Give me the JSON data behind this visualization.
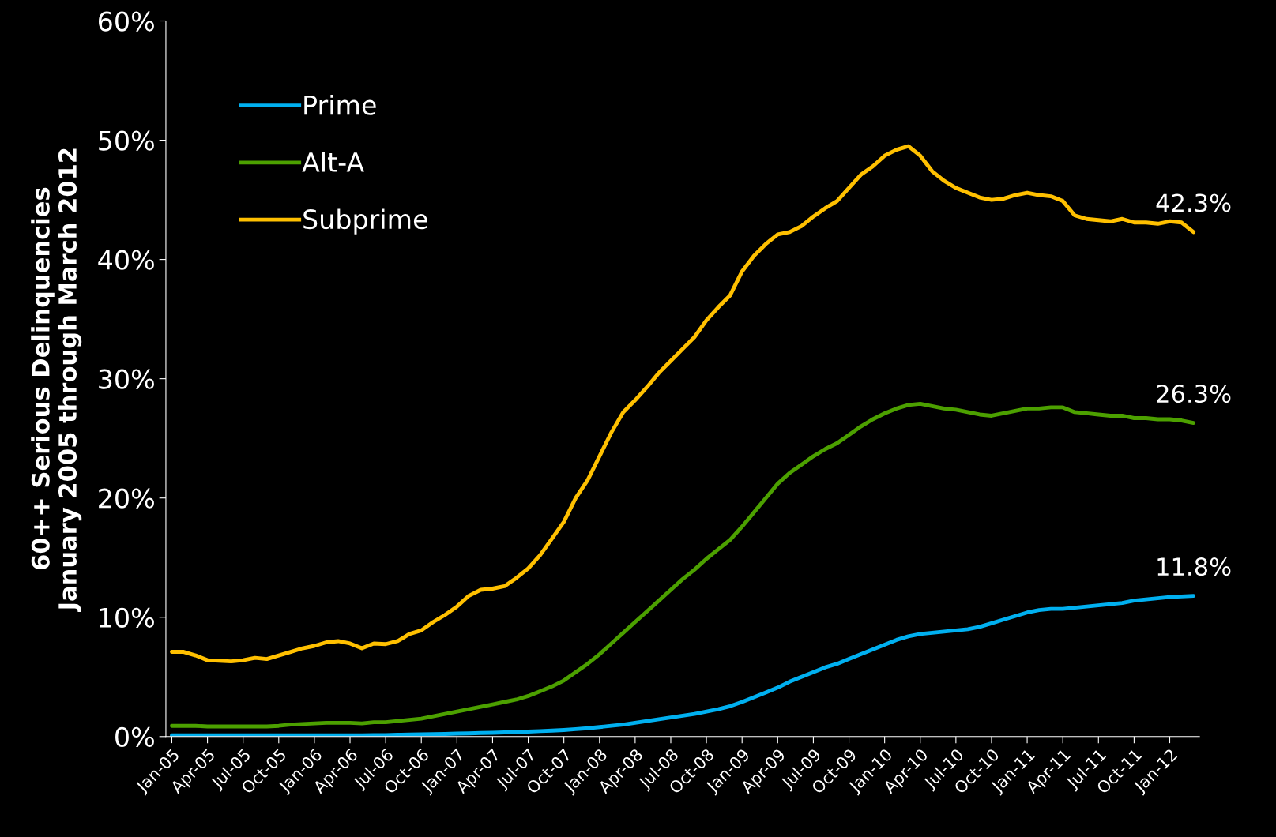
{
  "chart_data": {
    "type": "line",
    "ylabel": "60++ Serious Delinquencies\nJanuary 2005 through March 2012",
    "categories": [
      "Jan-05",
      null,
      null,
      "Apr-05",
      null,
      null,
      "Jul-05",
      null,
      null,
      "Oct-05",
      null,
      null,
      "Jan-06",
      null,
      null,
      "Apr-06",
      null,
      null,
      "Jul-06",
      null,
      null,
      "Oct-06",
      null,
      null,
      "Jan-07",
      null,
      null,
      "Apr-07",
      null,
      null,
      "Jul-07",
      null,
      null,
      "Oct-07",
      null,
      null,
      "Jan-08",
      null,
      null,
      "Apr-08",
      null,
      null,
      "Jul-08",
      null,
      null,
      "Oct-08",
      null,
      null,
      "Jan-09",
      null,
      null,
      "Apr-09",
      null,
      null,
      "Jul-09",
      null,
      null,
      "Oct-09",
      null,
      null,
      "Jan-10",
      null,
      null,
      "Apr-10",
      null,
      null,
      "Jul-10",
      null,
      null,
      "Oct-10",
      null,
      null,
      "Jan-11",
      null,
      null,
      "Apr-11",
      null,
      null,
      "Jul-11",
      null,
      null,
      "Oct-11",
      null,
      null,
      "Jan-12",
      null,
      null
    ],
    "series": [
      {
        "name": "Prime",
        "color": "#00b0f0",
        "values": [
          0.1,
          0.1,
          0.1,
          0.1,
          0.1,
          0.1,
          0.1,
          0.1,
          0.1,
          0.1,
          0.1,
          0.1,
          0.1,
          0.1,
          0.1,
          0.1,
          0.1,
          0.12,
          0.13,
          0.15,
          0.17,
          0.19,
          0.2,
          0.22,
          0.25,
          0.27,
          0.3,
          0.32,
          0.35,
          0.38,
          0.42,
          0.46,
          0.5,
          0.55,
          0.62,
          0.7,
          0.8,
          0.9,
          1.0,
          1.15,
          1.3,
          1.45,
          1.6,
          1.75,
          1.9,
          2.1,
          2.3,
          2.55,
          2.9,
          3.3,
          3.7,
          4.1,
          4.6,
          5.0,
          5.4,
          5.8,
          6.1,
          6.5,
          6.9,
          7.3,
          7.7,
          8.1,
          8.4,
          8.6,
          8.7,
          8.8,
          8.9,
          9.0,
          9.2,
          9.5,
          9.8,
          10.1,
          10.4,
          10.6,
          10.7,
          10.7,
          10.8,
          10.9,
          11.0,
          11.1,
          11.2,
          11.4,
          11.5,
          11.6,
          11.7,
          11.75,
          11.8
        ],
        "value_labels": [
          null,
          null,
          null,
          null,
          null,
          null,
          null,
          null,
          null,
          null,
          null,
          null,
          null,
          null,
          null,
          null,
          null,
          null,
          null,
          null,
          null,
          null,
          null,
          null,
          null,
          null,
          null,
          null,
          null,
          null,
          null,
          null,
          null,
          null,
          null,
          null,
          null,
          null,
          null,
          null,
          null,
          null,
          null,
          null,
          null,
          null,
          null,
          null,
          null,
          null,
          null,
          null,
          null,
          null,
          null,
          null,
          null,
          null,
          null,
          null,
          null,
          null,
          null,
          null,
          null,
          null,
          null,
          null,
          null,
          null,
          null,
          null,
          null,
          null,
          null,
          null,
          null,
          null,
          null,
          null,
          null,
          null,
          null,
          null,
          null,
          null,
          "11.8%"
        ]
      },
      {
        "name": "Alt-A",
        "color": "#4ca000",
        "values": [
          0.9,
          0.9,
          0.9,
          0.85,
          0.85,
          0.85,
          0.85,
          0.85,
          0.85,
          0.9,
          1.0,
          1.05,
          1.1,
          1.15,
          1.15,
          1.15,
          1.1,
          1.2,
          1.2,
          1.3,
          1.4,
          1.5,
          1.7,
          1.9,
          2.1,
          2.3,
          2.5,
          2.7,
          2.9,
          3.1,
          3.4,
          3.8,
          4.2,
          4.7,
          5.4,
          6.1,
          6.9,
          7.8,
          8.7,
          9.6,
          10.5,
          11.4,
          12.3,
          13.2,
          14.0,
          14.9,
          15.7,
          16.5,
          17.6,
          18.8,
          20.0,
          21.2,
          22.1,
          22.8,
          23.5,
          24.1,
          24.6,
          25.3,
          26.0,
          26.6,
          27.1,
          27.5,
          27.8,
          27.9,
          27.7,
          27.5,
          27.4,
          27.2,
          27.0,
          26.9,
          27.1,
          27.3,
          27.5,
          27.5,
          27.6,
          27.6,
          27.2,
          27.1,
          27.0,
          26.9,
          26.9,
          26.7,
          26.7,
          26.6,
          26.6,
          26.5,
          26.3
        ],
        "value_labels": [
          null,
          null,
          null,
          null,
          null,
          null,
          null,
          null,
          null,
          null,
          null,
          null,
          null,
          null,
          null,
          null,
          null,
          null,
          null,
          null,
          null,
          null,
          null,
          null,
          null,
          null,
          null,
          null,
          null,
          null,
          null,
          null,
          null,
          null,
          null,
          null,
          null,
          null,
          null,
          null,
          null,
          null,
          null,
          null,
          null,
          null,
          null,
          null,
          null,
          null,
          null,
          null,
          null,
          null,
          null,
          null,
          null,
          null,
          null,
          null,
          null,
          null,
          null,
          null,
          null,
          null,
          null,
          null,
          null,
          null,
          null,
          null,
          null,
          null,
          null,
          null,
          null,
          null,
          null,
          null,
          null,
          null,
          null,
          null,
          null,
          null,
          "26.3%"
        ]
      },
      {
        "name": "Subprime",
        "color": "#ffc000",
        "values": [
          7.1,
          7.1,
          6.8,
          6.4,
          6.35,
          6.3,
          6.4,
          6.6,
          6.5,
          6.8,
          7.1,
          7.4,
          7.6,
          7.9,
          8.0,
          7.8,
          7.4,
          7.8,
          7.75,
          8.0,
          8.6,
          8.9,
          9.6,
          10.2,
          10.9,
          11.8,
          12.3,
          12.4,
          12.6,
          13.3,
          14.1,
          15.2,
          16.6,
          18.0,
          20.0,
          21.5,
          23.5,
          25.5,
          27.2,
          28.2,
          29.3,
          30.5,
          31.5,
          32.5,
          33.5,
          34.9,
          36.0,
          37.0,
          39.0,
          40.3,
          41.3,
          42.1,
          42.3,
          42.8,
          43.6,
          44.3,
          44.9,
          46.0,
          47.1,
          47.8,
          48.7,
          49.2,
          49.5,
          48.7,
          47.4,
          46.6,
          46.0,
          45.6,
          45.2,
          45.0,
          45.1,
          45.4,
          45.6,
          45.4,
          45.3,
          44.9,
          43.7,
          43.4,
          43.3,
          43.2,
          43.4,
          43.1,
          43.1,
          43.0,
          43.2,
          43.1,
          42.3
        ],
        "value_labels": [
          null,
          null,
          null,
          null,
          null,
          null,
          null,
          null,
          null,
          null,
          null,
          null,
          null,
          null,
          null,
          null,
          null,
          null,
          null,
          null,
          null,
          null,
          null,
          null,
          null,
          null,
          null,
          null,
          null,
          null,
          null,
          null,
          null,
          null,
          null,
          null,
          null,
          null,
          null,
          null,
          null,
          null,
          null,
          null,
          null,
          null,
          null,
          null,
          null,
          null,
          null,
          null,
          null,
          null,
          null,
          null,
          null,
          null,
          null,
          null,
          null,
          null,
          null,
          null,
          null,
          null,
          null,
          null,
          null,
          null,
          null,
          null,
          null,
          null,
          null,
          null,
          null,
          null,
          null,
          null,
          null,
          null,
          null,
          null,
          null,
          null,
          "42.3%"
        ]
      }
    ],
    "ylim": [
      0,
      60
    ],
    "yticks": [
      {
        "value": 0,
        "label": "0%"
      },
      {
        "value": 10,
        "label": "10%"
      },
      {
        "value": 20,
        "label": "20%"
      },
      {
        "value": 30,
        "label": "30%"
      },
      {
        "value": 40,
        "label": "40%"
      },
      {
        "value": 50,
        "label": "50%"
      },
      {
        "value": 60,
        "label": "60%"
      }
    ],
    "grid": false,
    "legend": "top left",
    "marker": "none",
    "line_style": "solid"
  }
}
